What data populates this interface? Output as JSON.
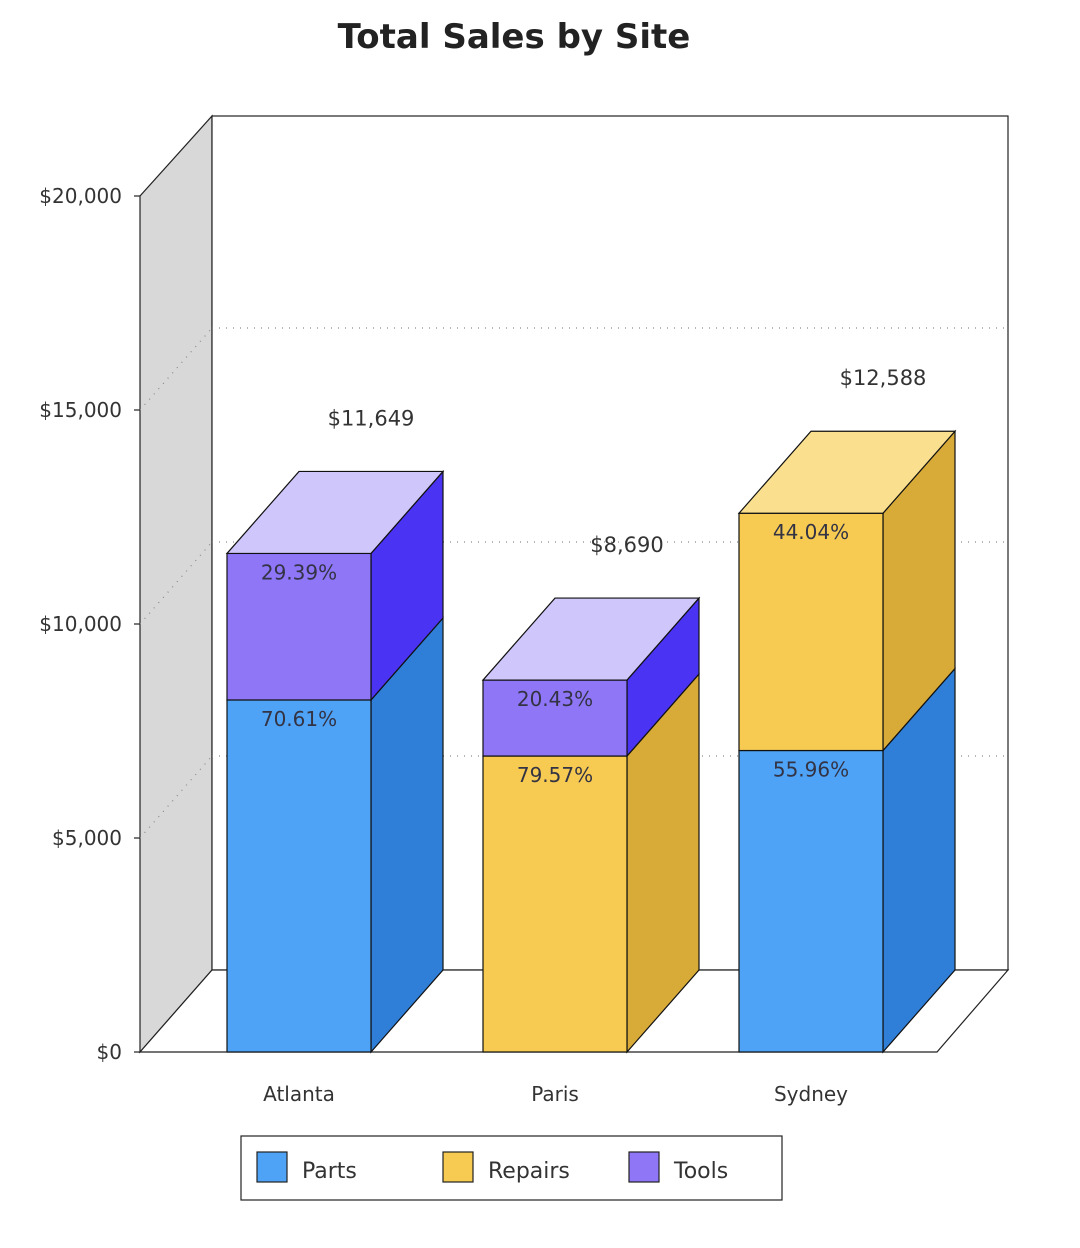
{
  "colors": {
    "Parts": {
      "front": "#4ea3f7",
      "side": "#2f7ed8",
      "top": "#8cc4fa"
    },
    "Repairs": {
      "front": "#f7cb52",
      "side": "#d8aa38",
      "top": "#fae08e"
    },
    "Tools": {
      "front": "#8e76f7",
      "side": "#4a33f2",
      "top": "#cfc6fb"
    },
    "wall": "#d8d8d8",
    "grid": "#8a8a8a"
  },
  "chart_data": {
    "type": "bar",
    "subtype": "stacked-3d",
    "title": "Total Sales by Site",
    "xlabel": "",
    "ylabel": "",
    "ylim": [
      0,
      20000
    ],
    "yticks": [
      0,
      5000,
      10000,
      15000,
      20000
    ],
    "ytick_labels": [
      "$0",
      "$5,000",
      "$10,000",
      "$15,000",
      "$20,000"
    ],
    "categories": [
      "Atlanta",
      "Paris",
      "Sydney"
    ],
    "series": [
      {
        "name": "Parts",
        "values": [
          8225,
          0,
          7044
        ]
      },
      {
        "name": "Repairs",
        "values": [
          0,
          6915,
          5544
        ]
      },
      {
        "name": "Tools",
        "values": [
          3424,
          1775,
          0
        ]
      }
    ],
    "segment_labels": [
      [
        "70.61%",
        "",
        "29.39%"
      ],
      [
        "",
        "79.57%",
        "20.43%"
      ],
      [
        "55.96%",
        "44.04%",
        ""
      ]
    ],
    "totals": [
      11649,
      8690,
      12588
    ],
    "total_labels": [
      "$11,649",
      "$8,690",
      "$12,588"
    ],
    "grid": true,
    "legend": {
      "position": "bottom",
      "entries": [
        "Parts",
        "Repairs",
        "Tools"
      ]
    }
  }
}
